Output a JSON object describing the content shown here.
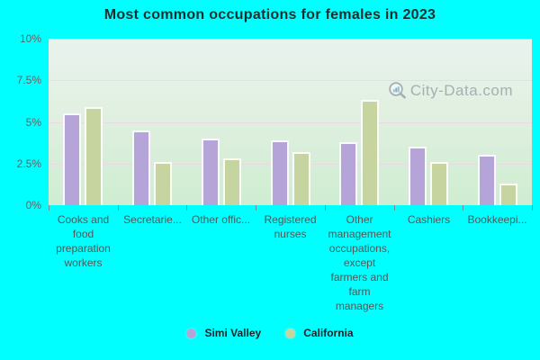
{
  "title": "Most common occupations for females in 2023",
  "watermark": "City-Data.com",
  "colors": {
    "background": "#00ffff",
    "simi_valley": "#b5a4d7",
    "california": "#c6d4a0",
    "plot_top": "#e9f3ee",
    "plot_bottom": "#cfedd1",
    "gridline": "#ebd6e7",
    "title_text": "#1c2d2d",
    "ytick_text": "#63635f",
    "xtick_text": "#4c5a58",
    "watermark_text": "#9aa5ab"
  },
  "legend": {
    "items": [
      {
        "label": "Simi Valley"
      },
      {
        "label": "California"
      }
    ]
  },
  "chart_data": {
    "type": "bar",
    "title": "Most common occupations for females in 2023",
    "categories": [
      "Cooks and food preparation workers",
      "Secretarie...",
      "Other offic...",
      "Registered nurses",
      "Other management occupations, except farmers and farm managers",
      "Cashiers",
      "Bookkeepi..."
    ],
    "series": [
      {
        "name": "Simi Valley",
        "values": [
          5.5,
          4.5,
          4.0,
          3.9,
          3.8,
          3.5,
          3.0
        ]
      },
      {
        "name": "California",
        "values": [
          5.9,
          2.6,
          2.8,
          3.2,
          6.3,
          2.6,
          1.3
        ]
      }
    ],
    "yticks": [
      0,
      2.5,
      5,
      7.5,
      10
    ],
    "ytick_labels": [
      "0%",
      "2.5%",
      "5%",
      "7.5%",
      "10%"
    ],
    "ylim": [
      0,
      10
    ],
    "unit": "%",
    "grid": "horizontal",
    "legend_position": "bottom"
  }
}
